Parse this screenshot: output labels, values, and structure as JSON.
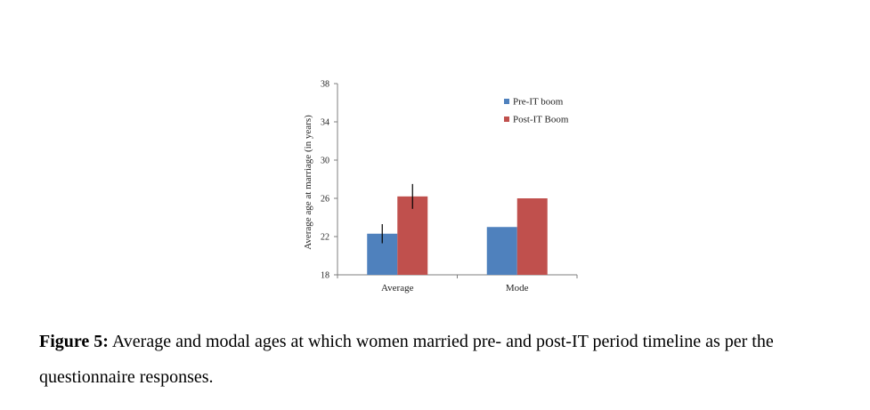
{
  "chart_data": {
    "type": "bar",
    "categories": [
      "Average",
      "Mode"
    ],
    "series": [
      {
        "name": "Pre-IT boom",
        "color": "#4f81bd",
        "values": [
          22.3,
          23.0
        ],
        "error": [
          1.0,
          null
        ]
      },
      {
        "name": "Post-IT Boom",
        "color": "#c0504d",
        "values": [
          26.2,
          26.0
        ],
        "error": [
          1.3,
          null
        ]
      }
    ],
    "ylabel": "Average age at marriage (in years)",
    "xlabel": "",
    "ylim": [
      18,
      38
    ],
    "yticks": [
      18,
      22,
      26,
      30,
      34,
      38
    ],
    "legend_position": "top-right",
    "grid": false
  },
  "caption": {
    "label": "Figure 5:",
    "text": " Average and modal ages at which women married pre- and post-IT period timeline as per the questionnaire responses."
  }
}
